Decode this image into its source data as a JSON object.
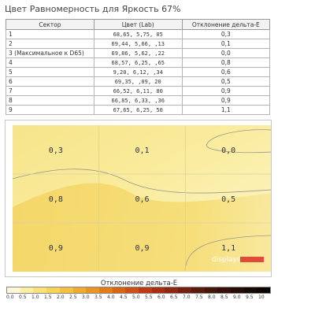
{
  "title": "Цвет Равномерность для Яркость 67%",
  "table": {
    "headers": [
      "Сектор",
      "Цвет (Lab)",
      "Отклонение дельта-E"
    ],
    "rows": [
      {
        "sector": "1",
        "lab": "68,65,   5,75,     05",
        "de": "0,3"
      },
      {
        "sector": "2",
        "lab": "69,44,   5,66,    ,13",
        "de": "0,1"
      },
      {
        "sector": "3 (Максимальное к D65)",
        "lab": "69,86,   5,62,    ,22",
        "de": "0,0"
      },
      {
        "sector": "4",
        "lab": "68,57,   6,25,    ,65",
        "de": "0,8"
      },
      {
        "sector": "5",
        "lab": "9,20,   6,12,    ,34",
        "de": "0,6"
      },
      {
        "sector": "6",
        "lab": "69,35,    ,09,     20",
        "de": "0,5"
      },
      {
        "sector": "7",
        "lab": "66,52,   6,11,     80",
        "de": "0,9"
      },
      {
        "sector": "8",
        "lab": "66,85,   6,33,    ,36",
        "de": "0,9"
      },
      {
        "sector": "9",
        "lab": "67,65,   6,25,     50",
        "de": "1,1"
      }
    ]
  },
  "chart_data": {
    "type": "heatmap",
    "grid_rows": 3,
    "grid_cols": 3,
    "values": [
      [
        "0,3",
        "0,1",
        "0,0"
      ],
      [
        "0,8",
        "0,6",
        "0,5"
      ],
      [
        "0,9",
        "0,9",
        "1,1"
      ]
    ],
    "watermark": "displaycalr",
    "legend_title": "Отклонение дельта-E",
    "scale_ticks": [
      "0.0",
      "0.5",
      "1.0",
      "1.5",
      "2.0",
      "2.5",
      "3.0",
      "3.5",
      "4.0",
      "4.5",
      "5.0",
      "5.5",
      "6.0",
      "6.5",
      "7.0",
      "7.5",
      "8.0",
      "8.5",
      "9.0",
      "9.5",
      "10"
    ],
    "scale_colors": [
      "#fff7d6",
      "#fdeea0",
      "#fae179",
      "#f7d35a",
      "#f3c040",
      "#efaa30",
      "#ea9424",
      "#e27c1c",
      "#d86418",
      "#cd4e16",
      "#be3a14",
      "#a82e12",
      "#8e2610",
      "#74200e",
      "#5c1a0c",
      "#46150a",
      "#341008",
      "#250c06",
      "#180804",
      "#0c0402"
    ]
  }
}
